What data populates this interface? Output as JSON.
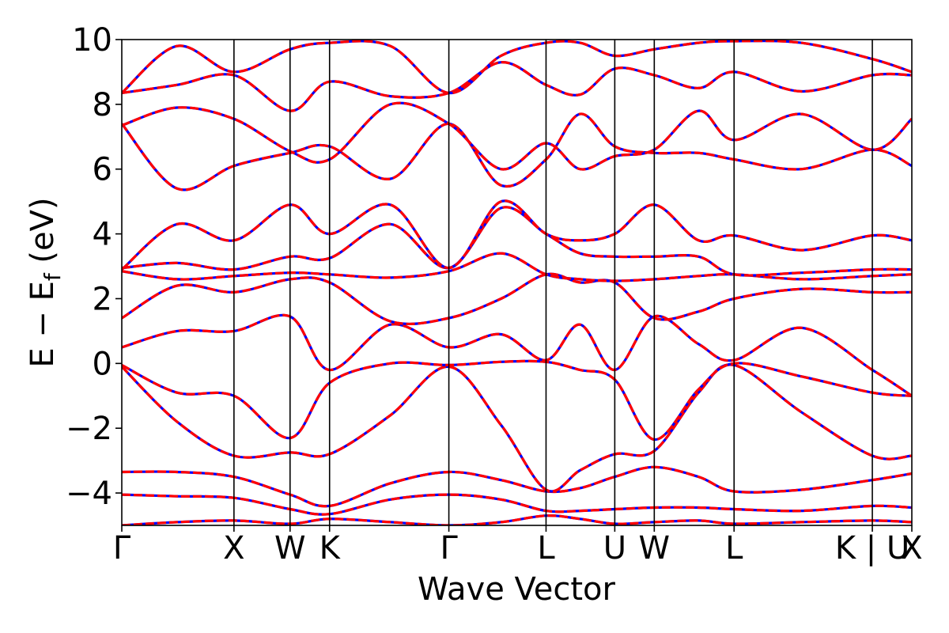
{
  "chart_data": {
    "type": "line",
    "title": "",
    "xlabel": "Wave Vector",
    "ylabel": "E − E_f (eV)",
    "ylabel_parts": {
      "main": "E  −  E",
      "sub": "f",
      "unit": " (eV)"
    },
    "ylim": [
      -5,
      10
    ],
    "yticks": [
      -4,
      -2,
      0,
      2,
      4,
      6,
      8,
      10
    ],
    "ytick_labels": [
      "−4",
      "−2",
      "0",
      "2",
      "4",
      "6",
      "8",
      "10"
    ],
    "xlim": [
      0,
      10
    ],
    "kpath": [
      {
        "label": "Γ",
        "x": 0.0
      },
      {
        "label": "X",
        "x": 1.42
      },
      {
        "label": "W",
        "x": 2.13
      },
      {
        "label": "K",
        "x": 2.63
      },
      {
        "label": "Γ",
        "x": 4.14
      },
      {
        "label": "L",
        "x": 5.37
      },
      {
        "label": "U",
        "x": 6.24
      },
      {
        "label": "W",
        "x": 6.74
      },
      {
        "label": "L",
        "x": 7.75
      },
      {
        "label": "K | U",
        "x": 9.5
      },
      {
        "label": "X",
        "x": 10.0
      }
    ],
    "grid": false,
    "colors": {
      "series_a": "#0000ff",
      "series_b": "#ff0000"
    },
    "bands": [
      {
        "x": [
          0,
          0.7,
          1.42,
          2.13,
          2.63,
          3.4,
          4.14,
          4.8,
          5.37,
          5.8,
          6.24,
          6.74,
          7.3,
          7.75,
          8.6,
          9.5,
          10.0
        ],
        "y": [
          -5.0,
          -4.9,
          -4.85,
          -4.95,
          -4.8,
          -4.9,
          -5.0,
          -4.9,
          -4.7,
          -4.8,
          -4.95,
          -4.9,
          -4.85,
          -4.95,
          -4.9,
          -4.85,
          -4.9
        ]
      },
      {
        "x": [
          0,
          0.7,
          1.42,
          2.13,
          2.63,
          3.4,
          4.14,
          4.8,
          5.37,
          5.8,
          6.24,
          6.74,
          7.3,
          7.75,
          8.6,
          9.5,
          10.0
        ],
        "y": [
          -4.05,
          -4.1,
          -4.15,
          -4.5,
          -4.65,
          -4.2,
          -4.05,
          -4.2,
          -4.55,
          -4.55,
          -4.5,
          -4.45,
          -4.45,
          -4.5,
          -4.55,
          -4.4,
          -4.45
        ]
      },
      {
        "x": [
          0,
          0.7,
          1.42,
          2.13,
          2.63,
          3.4,
          4.14,
          4.8,
          5.37,
          5.8,
          6.24,
          6.74,
          7.3,
          7.75,
          8.6,
          9.5,
          10.0
        ],
        "y": [
          -3.35,
          -3.35,
          -3.5,
          -4.05,
          -4.4,
          -3.7,
          -3.35,
          -3.6,
          -3.95,
          -3.85,
          -3.5,
          -3.2,
          -3.5,
          -3.95,
          -3.9,
          -3.6,
          -3.4
        ]
      },
      {
        "x": [
          0,
          0.7,
          1.42,
          2.13,
          2.63,
          3.4,
          4.14,
          4.8,
          5.37,
          5.8,
          6.24,
          6.74,
          7.3,
          7.75,
          8.6,
          9.5,
          10.0
        ],
        "y": [
          -0.1,
          -1.8,
          -2.85,
          -2.75,
          -2.8,
          -1.6,
          -0.1,
          -1.9,
          -3.9,
          -3.3,
          -2.8,
          -2.7,
          -0.9,
          -0.05,
          -1.5,
          -2.85,
          -2.85
        ]
      },
      {
        "x": [
          0,
          0.7,
          1.42,
          2.13,
          2.63,
          3.4,
          4.14,
          4.8,
          5.37,
          5.8,
          6.24,
          6.74,
          7.3,
          7.75,
          8.6,
          9.5,
          10.0
        ],
        "y": [
          -0.05,
          -0.9,
          -1.0,
          -2.3,
          -0.6,
          0.0,
          -0.05,
          0.05,
          0.05,
          -0.2,
          -0.5,
          -2.35,
          -0.8,
          0.0,
          -0.4,
          -0.9,
          -1.0
        ]
      },
      {
        "x": [
          0,
          0.7,
          1.42,
          2.13,
          2.63,
          3.4,
          4.14,
          4.8,
          5.37,
          5.8,
          6.24,
          6.74,
          7.3,
          7.75,
          8.6,
          9.5,
          10.0
        ],
        "y": [
          0.5,
          1.0,
          1.0,
          1.45,
          -0.2,
          1.2,
          0.5,
          0.9,
          0.1,
          1.2,
          -0.2,
          1.45,
          0.6,
          0.1,
          1.1,
          -0.2,
          -1.0
        ]
      },
      {
        "x": [
          0,
          0.7,
          1.42,
          2.13,
          2.63,
          3.4,
          4.14,
          4.8,
          5.37,
          5.8,
          6.24,
          6.74,
          7.3,
          7.75,
          8.6,
          9.5,
          10.0
        ],
        "y": [
          1.4,
          2.4,
          2.2,
          2.6,
          2.5,
          1.3,
          1.4,
          2.0,
          2.75,
          2.5,
          2.5,
          1.4,
          1.6,
          2.0,
          2.3,
          2.2,
          2.2
        ]
      },
      {
        "x": [
          0,
          0.7,
          1.42,
          2.13,
          2.63,
          3.4,
          4.14,
          4.8,
          5.37,
          5.8,
          6.24,
          6.74,
          7.3,
          7.75,
          8.6,
          9.5,
          10.0
        ],
        "y": [
          2.85,
          2.6,
          2.7,
          2.8,
          2.75,
          2.65,
          2.85,
          3.4,
          2.75,
          2.6,
          2.55,
          2.6,
          2.7,
          2.75,
          2.6,
          2.7,
          2.75
        ]
      },
      {
        "x": [
          0,
          0.7,
          1.42,
          2.13,
          2.63,
          3.4,
          4.14,
          4.8,
          5.37,
          5.8,
          6.24,
          6.74,
          7.3,
          7.75,
          8.6,
          9.5,
          10.0
        ],
        "y": [
          2.95,
          3.1,
          2.9,
          3.3,
          3.25,
          4.3,
          2.95,
          4.8,
          4.0,
          3.4,
          3.3,
          3.3,
          3.3,
          2.75,
          2.8,
          2.9,
          2.9
        ]
      },
      {
        "x": [
          0,
          0.7,
          1.42,
          2.13,
          2.63,
          3.4,
          4.14,
          4.8,
          5.37,
          5.8,
          6.24,
          6.74,
          7.3,
          7.75,
          8.6,
          9.5,
          10.0
        ],
        "y": [
          2.9,
          4.3,
          3.8,
          4.9,
          4.0,
          4.9,
          2.95,
          5.0,
          4.0,
          3.8,
          4.0,
          4.9,
          3.8,
          3.95,
          3.5,
          3.95,
          3.8
        ]
      },
      {
        "x": [
          0,
          0.7,
          1.42,
          2.13,
          2.63,
          3.4,
          4.14,
          4.8,
          5.37,
          5.8,
          6.24,
          6.74,
          7.3,
          7.75,
          8.6,
          9.5,
          10.0
        ],
        "y": [
          7.4,
          5.4,
          6.1,
          6.5,
          6.7,
          5.7,
          7.4,
          5.5,
          6.3,
          7.7,
          6.7,
          6.5,
          6.5,
          6.3,
          6.0,
          6.6,
          6.1
        ]
      },
      {
        "x": [
          0,
          0.7,
          1.42,
          2.13,
          2.63,
          3.4,
          4.14,
          4.8,
          5.37,
          5.8,
          6.24,
          6.74,
          7.3,
          7.75,
          8.6,
          9.5,
          10.0
        ],
        "y": [
          7.35,
          7.9,
          7.55,
          6.55,
          6.3,
          8.0,
          7.4,
          6.0,
          6.8,
          6.0,
          6.4,
          6.6,
          7.8,
          6.9,
          7.7,
          6.6,
          7.55
        ]
      },
      {
        "x": [
          0,
          0.7,
          1.42,
          2.13,
          2.63,
          3.4,
          4.14,
          4.8,
          5.37,
          5.8,
          6.24,
          6.74,
          7.3,
          7.75,
          8.6,
          9.5,
          10.0
        ],
        "y": [
          8.35,
          8.6,
          8.9,
          7.8,
          8.7,
          8.25,
          8.35,
          9.3,
          8.6,
          8.3,
          9.1,
          8.9,
          8.5,
          9.0,
          8.4,
          8.9,
          8.9
        ]
      },
      {
        "x": [
          0,
          0.7,
          1.42,
          2.13,
          2.63,
          3.4,
          4.14,
          4.8,
          5.37,
          5.8,
          6.24,
          6.74,
          7.3,
          7.75,
          8.6,
          9.5,
          10.0
        ],
        "y": [
          8.35,
          9.8,
          9.0,
          9.7,
          9.9,
          9.8,
          8.35,
          9.5,
          9.9,
          9.9,
          9.5,
          9.7,
          9.9,
          9.95,
          9.9,
          9.4,
          9.0
        ]
      }
    ]
  }
}
